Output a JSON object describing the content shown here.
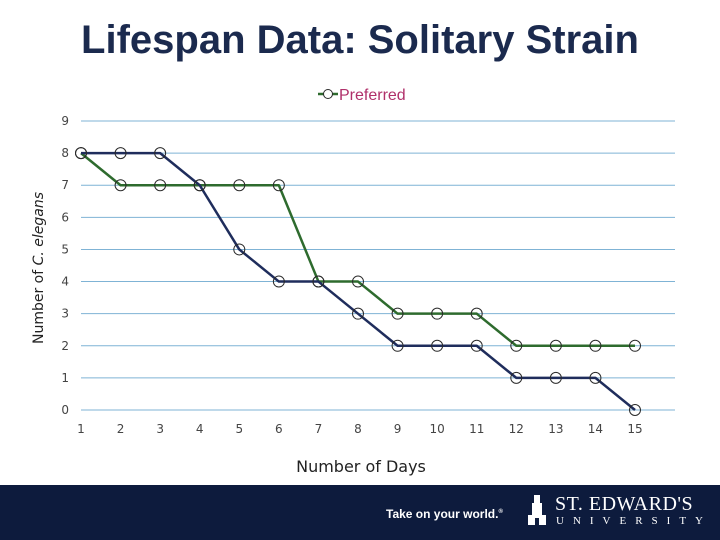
{
  "slide": {
    "title": "Lifespan Data: Solitary Strain"
  },
  "footer": {
    "tagline": "Take on your world.",
    "tagline_mark": "®",
    "logo_name": "ST. EDWARD'S",
    "logo_sub": "UNIVERSITY",
    "logo_icon": "university-tower-icon"
  },
  "colors": {
    "title": "#1b2a4e",
    "series_navy": "#1f2d5c",
    "series_green": "#2e6b2e",
    "legend_text": "#b0306a",
    "grid": "#7fb3d5",
    "footer_bg": "#0d1b3d"
  },
  "chart_data": {
    "type": "line",
    "title": "",
    "xlabel": "Number of Days",
    "ylabel_prefix": "Number of ",
    "ylabel_italic": "C. elegans",
    "x": [
      1,
      2,
      3,
      4,
      5,
      6,
      7,
      8,
      9,
      10,
      11,
      12,
      13,
      14,
      15
    ],
    "ylim": [
      0,
      9
    ],
    "yticks": [
      0,
      1,
      2,
      3,
      4,
      5,
      6,
      7,
      8,
      9
    ],
    "grid": true,
    "legend_position": "top-center",
    "series": [
      {
        "name": "",
        "color": "#1f2d5c",
        "values": [
          8,
          8,
          8,
          7,
          5,
          4,
          4,
          3,
          2,
          2,
          2,
          1,
          1,
          1,
          0
        ]
      },
      {
        "name": "Preferred",
        "color": "#2e6b2e",
        "values": [
          8,
          7,
          7,
          7,
          7,
          7,
          4,
          4,
          3,
          3,
          3,
          2,
          2,
          2,
          2
        ]
      }
    ]
  }
}
